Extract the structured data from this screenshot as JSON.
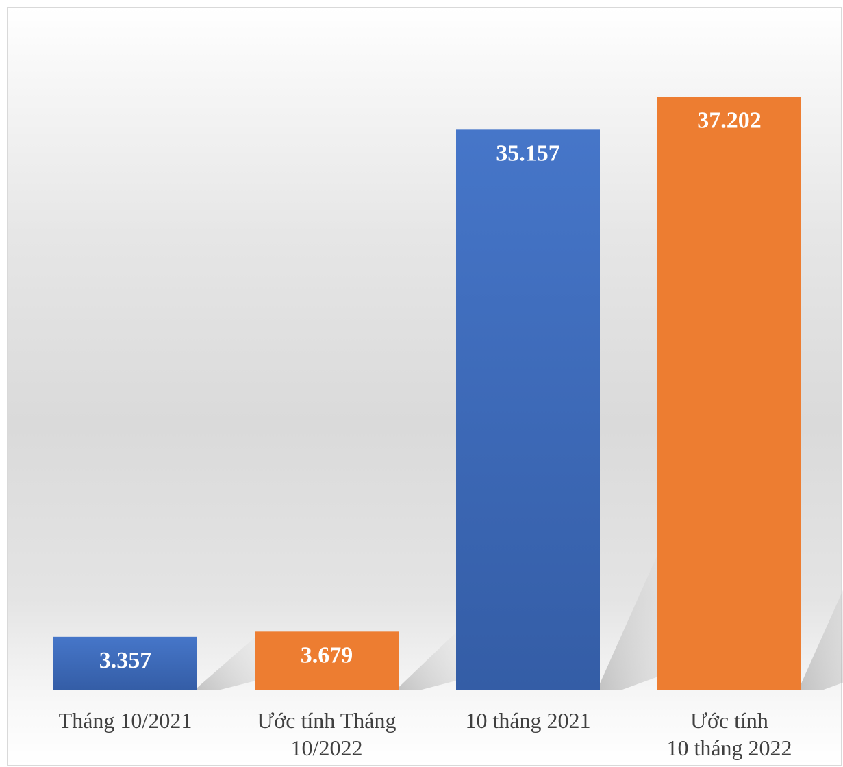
{
  "chart_data": {
    "type": "bar",
    "title": "",
    "xlabel": "",
    "ylabel": "",
    "categories": [
      [
        "Tháng 10/2021"
      ],
      [
        "Ước tính Tháng",
        "10/2022"
      ],
      [
        "10 tháng 2021"
      ],
      [
        "Ước tính",
        "10 tháng 2022"
      ]
    ],
    "values": [
      3357,
      3679,
      35157,
      37202
    ],
    "value_labels": [
      "3.357",
      "3.679",
      "35.157",
      "37.202"
    ],
    "colors": [
      "#4472c4",
      "#ed7d31",
      "#4472c4",
      "#ed7d31"
    ],
    "ylim": [
      0,
      42000
    ],
    "grid": false,
    "legend": "none"
  }
}
